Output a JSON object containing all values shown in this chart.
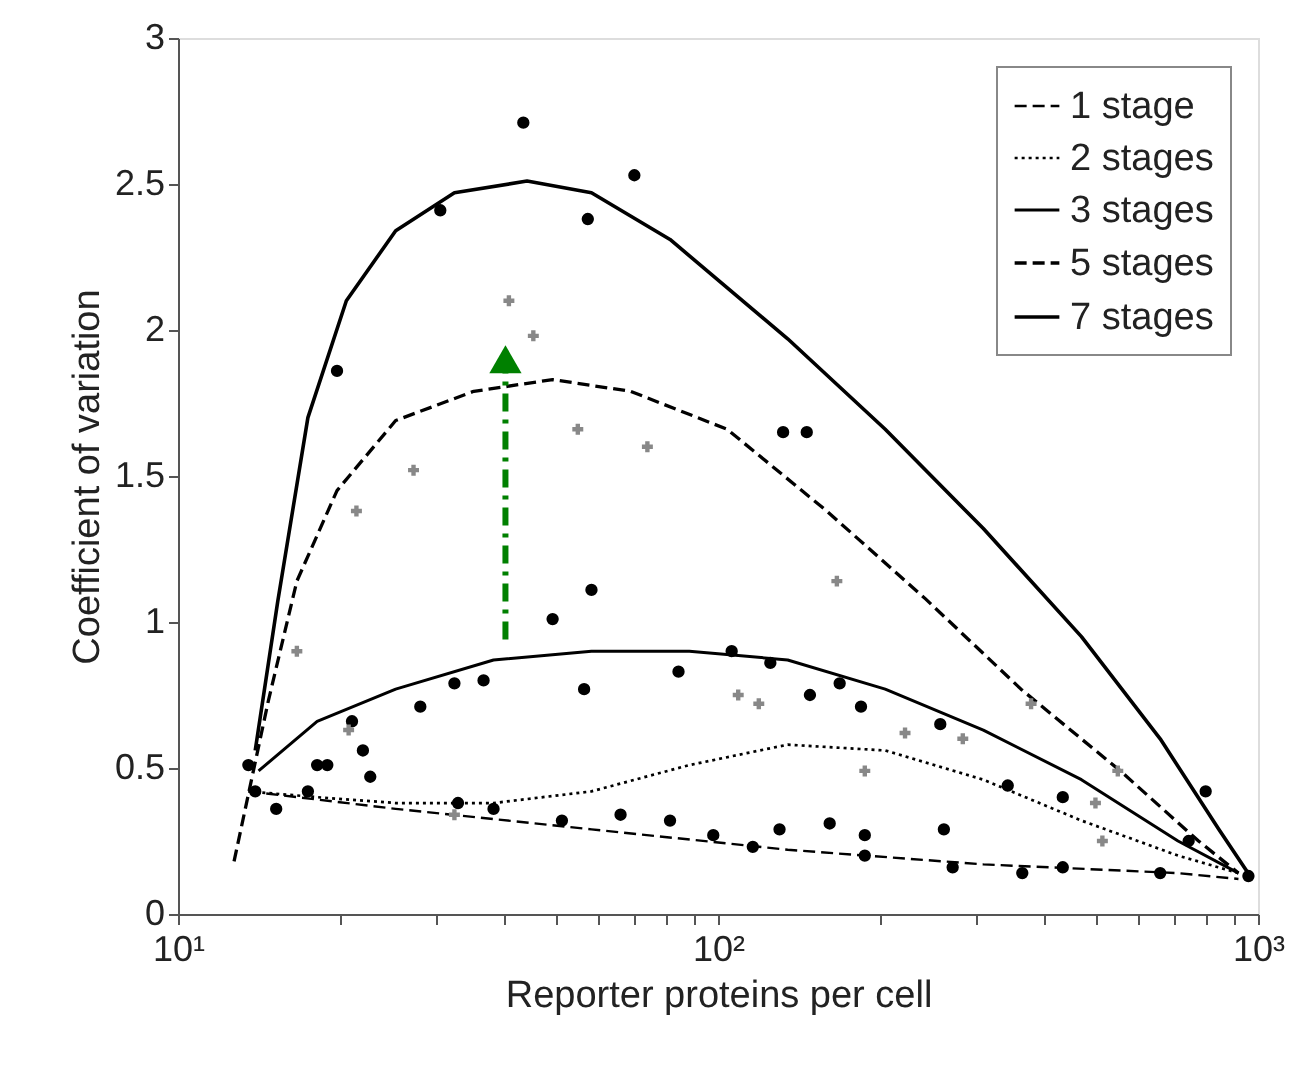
{
  "chart_data": {
    "type": "line",
    "xlabel": "Reporter proteins per cell",
    "ylabel": "Coefficient of variation",
    "log": "x",
    "grid": false,
    "legend": "top right",
    "xlim": [
      10,
      1000
    ],
    "ylim": [
      0,
      3
    ],
    "xticks": [
      {
        "value": 10,
        "label": "10¹"
      },
      {
        "value": 20,
        "label": null
      },
      {
        "value": 30,
        "label": null
      },
      {
        "value": 40,
        "label": null
      },
      {
        "value": 50,
        "label": null
      },
      {
        "value": 60,
        "label": null
      },
      {
        "value": 70,
        "label": null
      },
      {
        "value": 80,
        "label": null
      },
      {
        "value": 90,
        "label": null
      },
      {
        "value": 100,
        "label": "10²"
      },
      {
        "value": 200,
        "label": null
      },
      {
        "value": 300,
        "label": null
      },
      {
        "value": 400,
        "label": null
      },
      {
        "value": 500,
        "label": null
      },
      {
        "value": 600,
        "label": null
      },
      {
        "value": 700,
        "label": null
      },
      {
        "value": 800,
        "label": null
      },
      {
        "value": 900,
        "label": null
      },
      {
        "value": 1000,
        "label": "10³"
      }
    ],
    "yticks": [
      0,
      0.5,
      1,
      1.5,
      2,
      2.5,
      3
    ],
    "series": [
      {
        "name": "1 stage",
        "color": "#000000",
        "line_style": "dashed",
        "marker": "none",
        "x": [
          13.5,
          25.3,
          58.3,
          134.6,
          310,
          711,
          920
        ],
        "values": [
          0.42,
          0.36,
          0.29,
          0.22,
          0.17,
          0.14,
          0.12
        ]
      },
      {
        "name": "2 stages",
        "color": "#000000",
        "line_style": "dotted",
        "marker": "none",
        "x": [
          13.5,
          18.1,
          25.3,
          38.4,
          58.3,
          88.5,
          134.6,
          204,
          310,
          471,
          711,
          920
        ],
        "values": [
          0.42,
          0.4,
          0.38,
          0.38,
          0.42,
          0.51,
          0.58,
          0.56,
          0.46,
          0.32,
          0.2,
          0.14
        ]
      },
      {
        "name": "3 stages",
        "color": "#000000",
        "line_style": "solid",
        "marker": "none",
        "x": [
          14.1,
          18.1,
          25.3,
          38.4,
          58.3,
          88.5,
          134.6,
          204,
          310,
          471,
          711,
          920
        ],
        "values": [
          0.49,
          0.66,
          0.77,
          0.87,
          0.9,
          0.9,
          0.87,
          0.77,
          0.63,
          0.46,
          0.25,
          0.14
        ]
      },
      {
        "name": "5 stages",
        "color": "#000000",
        "line_style": "dashed",
        "marker": "none",
        "x": [
          12.7,
          14.7,
          16.6,
          19.7,
          25.3,
          35.3,
          49.4,
          68.9,
          104,
          159,
          242,
          364,
          556,
          776,
          920
        ],
        "values": [
          0.18,
          0.73,
          1.14,
          1.45,
          1.69,
          1.79,
          1.83,
          1.79,
          1.66,
          1.38,
          1.08,
          0.77,
          0.49,
          0.25,
          0.14
        ]
      },
      {
        "name": "7 stages",
        "color": "#000000",
        "line_style": "solid",
        "marker": "none",
        "x": [
          13.9,
          15.3,
          17.4,
          20.5,
          25.3,
          32.5,
          44.3,
          58.3,
          81.5,
          134.6,
          204,
          310,
          471,
          659,
          846,
          975
        ],
        "values": [
          0.56,
          1.07,
          1.7,
          2.1,
          2.34,
          2.47,
          2.51,
          2.47,
          2.31,
          1.97,
          1.66,
          1.32,
          0.95,
          0.6,
          0.29,
          0.12
        ]
      },
      {
        "type": "scatter",
        "color": "#000000",
        "marker": "circle",
        "x": [
          43.6,
          30.6,
          57.4,
          70,
          19.7,
          132,
          146,
          58.3,
          49.4,
          32.5,
          36.8,
          28.1,
          56.5,
          84.5,
          21,
          106,
          125,
          148,
          168,
          184,
          258,
          344,
          435,
          33,
          38.4,
          51.4,
          66,
          81.5,
          130,
          161,
          187,
          262,
          98,
          116,
          187,
          272,
          435,
          366,
          659,
          13.5,
          13.9,
          15.2,
          17.4,
          18.1,
          18.9,
          22,
          22.7,
          960,
          744,
          800
        ],
        "values": [
          2.71,
          2.41,
          2.38,
          2.53,
          1.86,
          1.65,
          1.65,
          1.11,
          1.01,
          0.79,
          0.8,
          0.71,
          0.77,
          0.83,
          0.66,
          0.9,
          0.86,
          0.75,
          0.79,
          0.71,
          0.65,
          0.44,
          0.4,
          0.38,
          0.36,
          0.32,
          0.34,
          0.32,
          0.29,
          0.31,
          0.27,
          0.29,
          0.27,
          0.23,
          0.2,
          0.16,
          0.16,
          0.14,
          0.14,
          0.51,
          0.42,
          0.36,
          0.42,
          0.51,
          0.51,
          0.56,
          0.47,
          0.13,
          0.25,
          0.42
        ]
      },
      {
        "type": "scatter",
        "color": "#888888",
        "marker": "cross",
        "x": [
          41,
          45.5,
          55,
          74,
          27.3,
          21.4,
          16.6,
          20.7,
          32.5,
          109,
          119,
          187,
          222,
          284,
          166,
          380,
          500,
          550,
          515
        ],
        "values": [
          2.1,
          1.98,
          1.66,
          1.6,
          1.52,
          1.38,
          0.9,
          0.63,
          0.34,
          0.75,
          0.72,
          0.49,
          0.62,
          0.6,
          1.14,
          0.72,
          0.38,
          0.49,
          0.25
        ]
      },
      {
        "type": "line",
        "color": "#008000",
        "line_style": "dashed",
        "marker": "triangle",
        "x": [
          40.4,
          40.4
        ],
        "values": [
          0.94,
          1.9
        ]
      }
    ]
  }
}
